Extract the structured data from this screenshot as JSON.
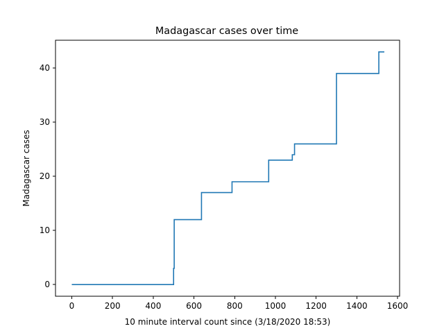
{
  "chart_data": {
    "type": "line",
    "title": "Madagascar cases over time",
    "xlabel": "10 minute interval count since (3/18/2020 18:53)",
    "ylabel": "Madagascar cases",
    "xlim": [
      -80,
      1610
    ],
    "ylim": [
      -2.15,
      45.15
    ],
    "xticks": [
      0,
      200,
      400,
      600,
      800,
      1000,
      1200,
      1400,
      1600
    ],
    "yticks": [
      0,
      10,
      20,
      30,
      40
    ],
    "grid": false,
    "legend": "none",
    "step": "post",
    "series": [
      {
        "color": "#1f77b4",
        "points": [
          [
            0,
            0
          ],
          [
            500,
            0
          ],
          [
            500,
            3
          ],
          [
            503,
            3
          ],
          [
            503,
            12
          ],
          [
            637,
            12
          ],
          [
            637,
            17
          ],
          [
            787,
            17
          ],
          [
            787,
            19
          ],
          [
            967,
            19
          ],
          [
            967,
            23
          ],
          [
            1083,
            23
          ],
          [
            1083,
            24
          ],
          [
            1094,
            24
          ],
          [
            1094,
            26
          ],
          [
            1300,
            26
          ],
          [
            1300,
            39
          ],
          [
            1508,
            39
          ],
          [
            1508,
            43
          ],
          [
            1535,
            43
          ]
        ]
      }
    ]
  }
}
